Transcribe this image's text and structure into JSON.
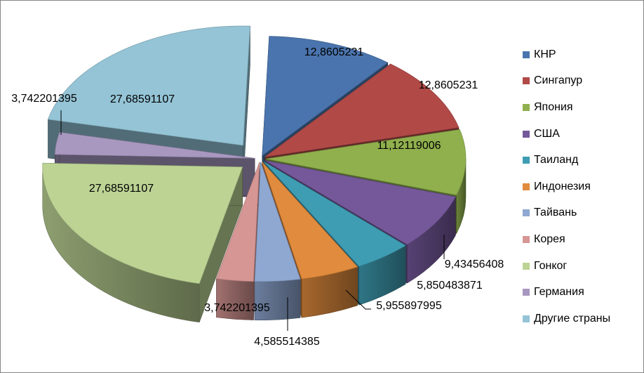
{
  "chart_data": {
    "type": "pie",
    "title": "",
    "legend_position": "right",
    "categories": [
      "КНР",
      "Сингапур",
      "Япония",
      "США",
      "Таиланд",
      "Индонезия",
      "Тайвань",
      "Корея",
      "Гонког",
      "Германия",
      "Другие страны"
    ],
    "values": [
      12.8605231,
      12.8605231,
      11.12119006,
      9.43456408,
      5.850483871,
      5.955897995,
      4.585514385,
      3.742201395,
      27.68591107,
      3.742201395,
      27.68591107
    ],
    "data_labels": [
      "12,8605231",
      "12,8605231",
      "11,12119006",
      "9,43456408",
      "5,850483871",
      "5,955897995",
      "4,585514385",
      "3,742201395",
      "27,68591107",
      "3,742201395",
      "27,68591107"
    ],
    "colors": [
      "#4a74ad",
      "#b14a47",
      "#8fb04d",
      "#74589a",
      "#3f9db3",
      "#e08b3d",
      "#8fa8d2",
      "#d69694",
      "#bcd394",
      "#a898c0",
      "#94c4d6"
    ]
  }
}
